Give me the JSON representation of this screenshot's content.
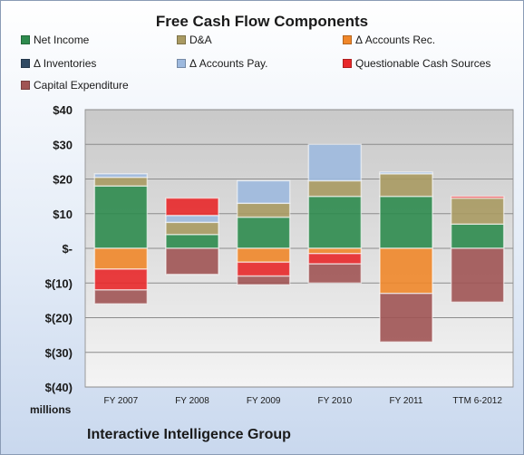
{
  "chart_data": {
    "type": "bar",
    "stacked": true,
    "title": "Free Cash Flow Components",
    "categories": [
      "FY 2007",
      "FY 2008",
      "FY 2009",
      "FY 2010",
      "FY 2011",
      "TTM 6-2012"
    ],
    "series": [
      {
        "name": "Net Income",
        "color": "#2e8b4e",
        "values": [
          18,
          4,
          9,
          15,
          15,
          7
        ]
      },
      {
        "name": "D&A",
        "color": "#a99a62",
        "values": [
          2.5,
          3.5,
          4,
          4.5,
          6.5,
          7.5
        ]
      },
      {
        "name": "Δ Accounts Rec.",
        "color": "#f0872a",
        "values": [
          -6,
          0,
          -4,
          -1.5,
          -13,
          0
        ]
      },
      {
        "name": "Δ Inventories",
        "color": "#2f4a63",
        "values": [
          0,
          0,
          0,
          0,
          0,
          0
        ]
      },
      {
        "name": "Δ Accounts Pay.",
        "color": "#9db9de",
        "values": [
          1,
          2,
          6.5,
          10.5,
          0.5,
          0
        ]
      },
      {
        "name": "Questionable Cash Sources",
        "color": "#e8282a",
        "values": [
          -6,
          5,
          -4,
          -3,
          0,
          0.5
        ]
      },
      {
        "name": "Capital Expenditure",
        "color": "#a05454",
        "values": [
          -4,
          -7.5,
          -2.5,
          -5.5,
          -14,
          -15.5
        ]
      }
    ],
    "ylim": [
      -40,
      40
    ],
    "yticks": [
      {
        "value": 40,
        "label": "$40"
      },
      {
        "value": 30,
        "label": "$30"
      },
      {
        "value": 20,
        "label": "$20"
      },
      {
        "value": 10,
        "label": "$10"
      },
      {
        "value": 0,
        "label": "$-"
      },
      {
        "value": -10,
        "label": "$(10)"
      },
      {
        "value": -20,
        "label": "$(20)"
      },
      {
        "value": -30,
        "label": "$(30)"
      },
      {
        "value": -40,
        "label": "$(40)"
      }
    ],
    "units_label": "millions",
    "footer": "Interactive Intelligence Group",
    "grid": true,
    "legend_position": "top"
  }
}
